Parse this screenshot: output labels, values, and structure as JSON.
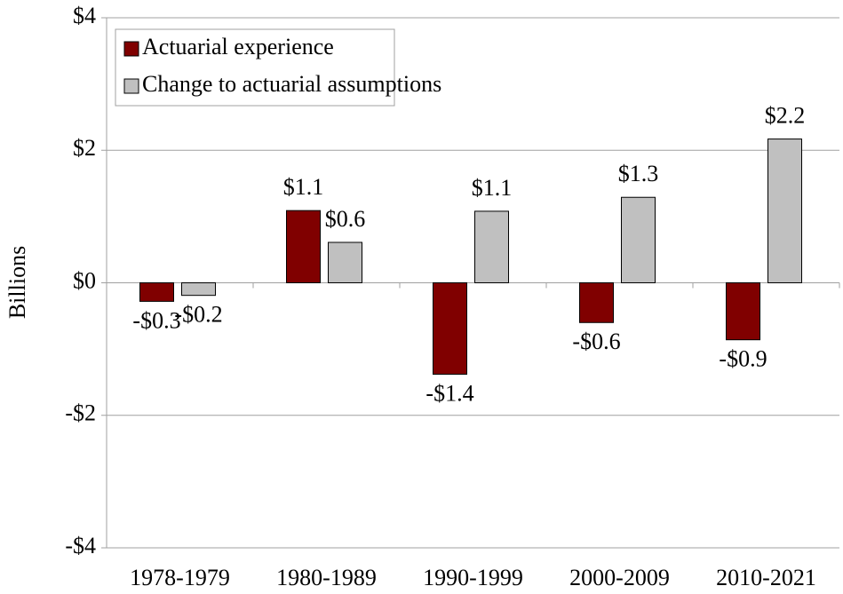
{
  "chart_data": {
    "type": "bar",
    "y_label": "Billions",
    "categories": [
      "1978-1979",
      "1980-1989",
      "1990-1999",
      "2000-2009",
      "2010-2021"
    ],
    "series": [
      {
        "name": "Actuarial experience",
        "color": "#800000",
        "values": [
          -0.28,
          1.09,
          -1.38,
          -0.6,
          -0.86
        ],
        "value_labels": [
          "-$0.3",
          "$1.1",
          "-$1.4",
          "-$0.6",
          "-$0.9"
        ]
      },
      {
        "name": "Change to actuarial assumptions",
        "color": "#c0c0c0",
        "values": [
          -0.19,
          0.61,
          1.08,
          1.29,
          2.17
        ],
        "value_labels": [
          "-$0.2",
          "$0.6",
          "$1.1",
          "$1.3",
          "$2.2"
        ]
      }
    ],
    "ylim": [
      -4,
      4
    ],
    "yticks": [
      {
        "value": -4,
        "label": "-$4"
      },
      {
        "value": -2,
        "label": "-$2"
      },
      {
        "value": 0,
        "label": "$0"
      },
      {
        "value": 2,
        "label": "$2"
      },
      {
        "value": 4,
        "label": "$4"
      }
    ],
    "grid": true,
    "legend": "top-left"
  }
}
